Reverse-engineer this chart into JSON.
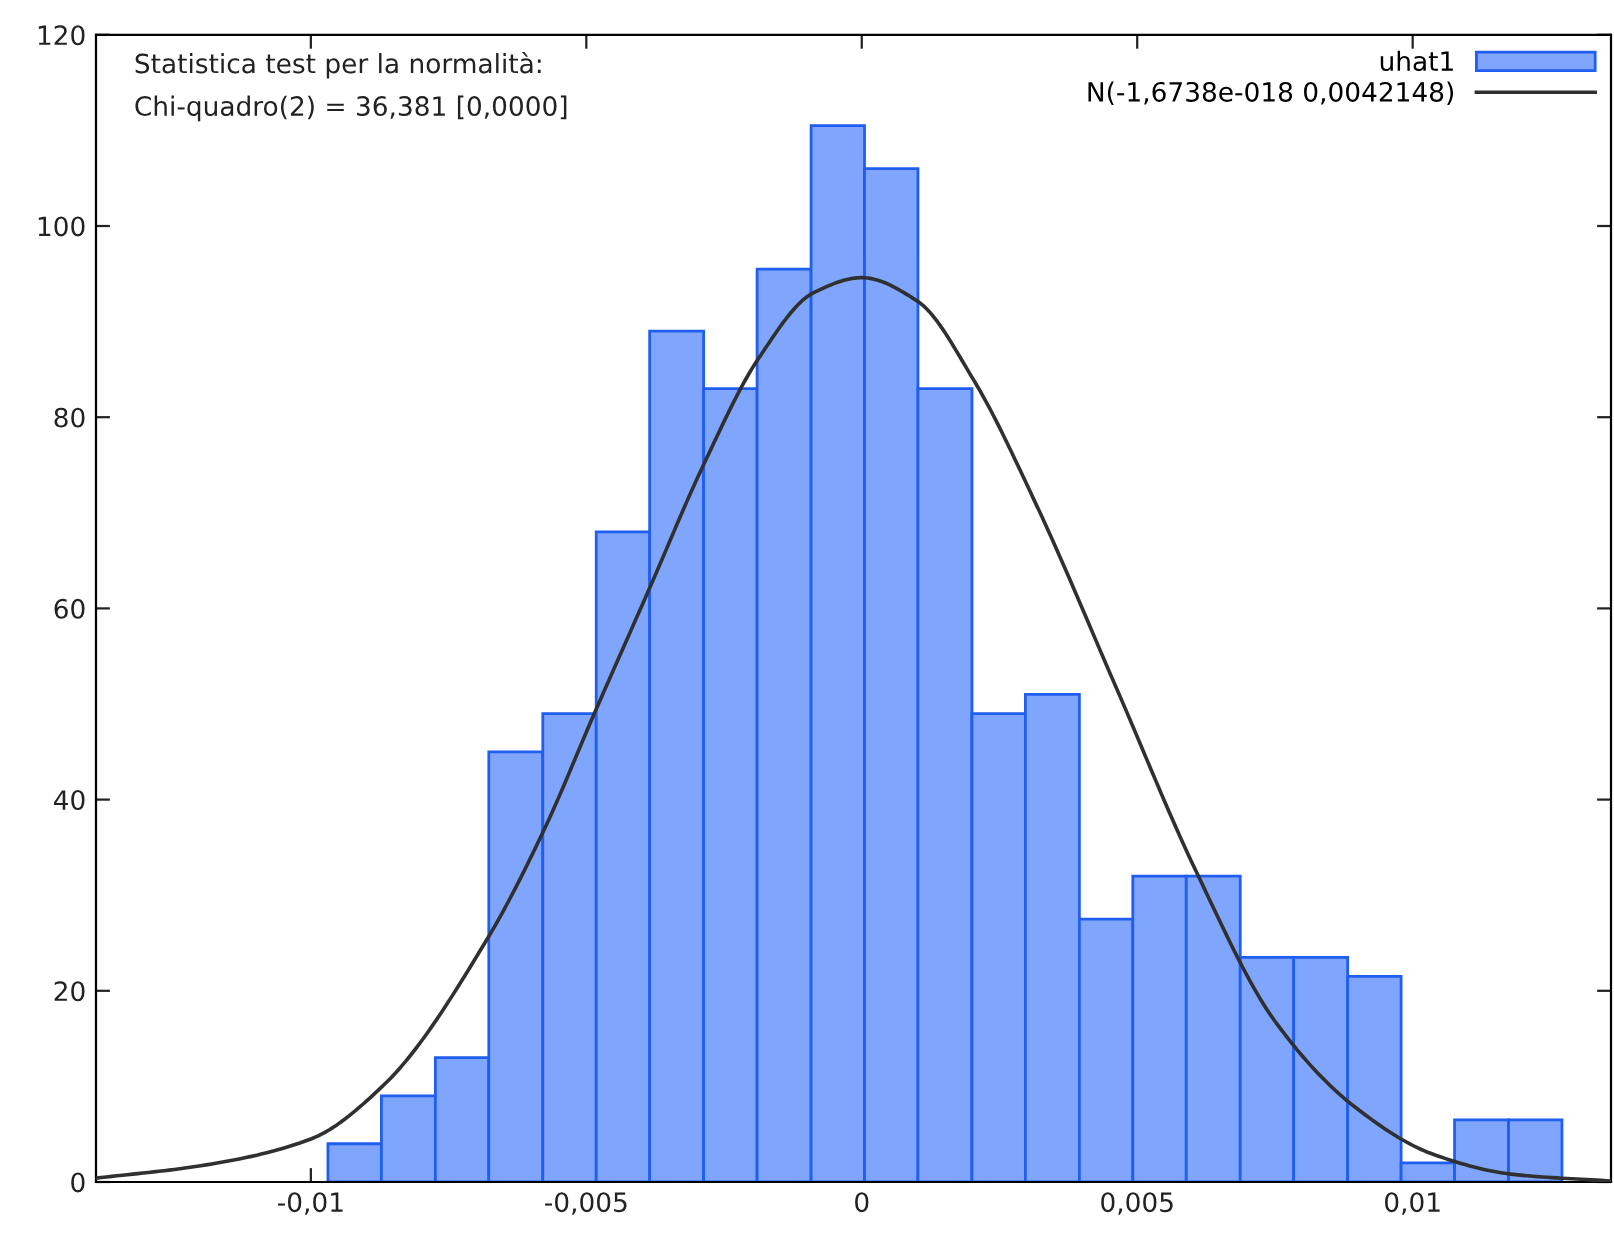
{
  "chart_data": {
    "type": "histogram",
    "bins": [
      -0.00969,
      -0.00872,
      -0.00774,
      -0.00677,
      -0.00579,
      -0.00482,
      -0.00385,
      -0.00287,
      -0.0019,
      -0.00092,
      5e-05,
      0.00102,
      0.002,
      0.00297,
      0.00395,
      0.00492,
      0.00589,
      0.00687,
      0.00784,
      0.00882,
      0.00979,
      0.01076,
      0.01174,
      0.01271
    ],
    "series": [
      {
        "name": "uhat1",
        "color": "#7fa6fc",
        "values": [
          4,
          9,
          13,
          45,
          49,
          68,
          89,
          83,
          95.5,
          110.5,
          106,
          83,
          49,
          51,
          27.5,
          32,
          32,
          23.5,
          23.5,
          21.5,
          2,
          6.5,
          6.5
        ]
      },
      {
        "name": "N(-1,6738e-018 0,0042148)",
        "type": "line",
        "color": "#303030",
        "x": [
          -0.0139,
          -0.012,
          -0.01,
          -0.00865,
          -0.00678,
          -0.00577,
          -0.00484,
          -0.00383,
          -0.00289,
          -0.00189,
          -0.00088,
          0,
          0.00102,
          0.00203,
          0.00318,
          0.00462,
          0.00606,
          0.00749,
          0.00894,
          0.01037,
          0.01182,
          0.0136
        ],
        "values": [
          0.4,
          1.7,
          4.5,
          10.3,
          25.6,
          36.8,
          49.2,
          62.4,
          74.8,
          86,
          93,
          94.6,
          92.1,
          83.9,
          70.7,
          51.7,
          32.6,
          16.9,
          7.9,
          2.9,
          0.8,
          0.1
        ]
      }
    ],
    "annotations": [
      "Statistica test per la normalità:",
      "Chi-quadro(2) = 36,381 [0,0000]"
    ],
    "xlim": [
      -0.0139,
      0.0136
    ],
    "xticks": [
      {
        "value": -0.01,
        "label": "-0,01"
      },
      {
        "value": -0.005,
        "label": "-0,005"
      },
      {
        "value": 0,
        "label": "0"
      },
      {
        "value": 0.005,
        "label": "0,005"
      },
      {
        "value": 0.01,
        "label": "0,01"
      }
    ],
    "ylim": [
      0,
      120
    ],
    "yticks": [
      0,
      20,
      40,
      60,
      80,
      100,
      120
    ],
    "grid": false,
    "legend": "top right"
  }
}
